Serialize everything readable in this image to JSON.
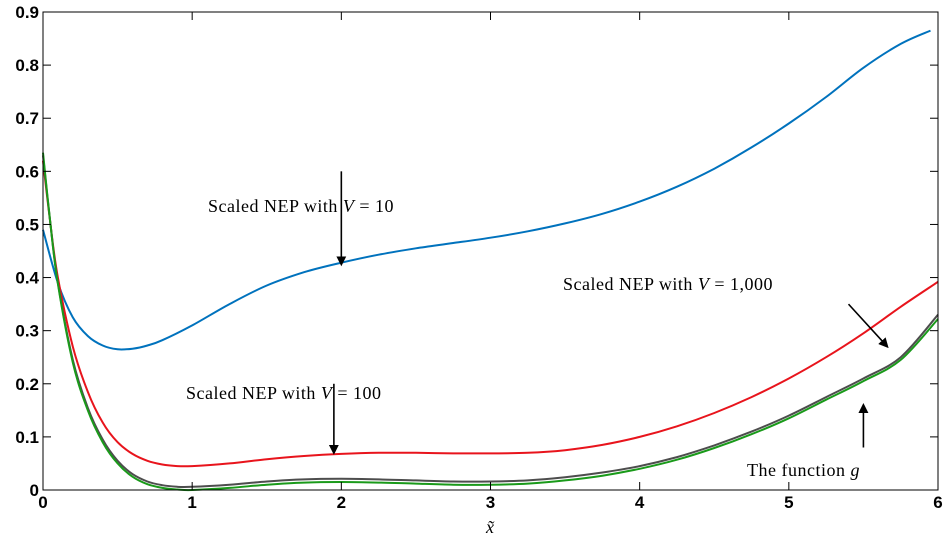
{
  "chart_data": {
    "type": "line",
    "xlabel": "x̃",
    "ylabel": "",
    "xlim": [
      0,
      6
    ],
    "ylim": [
      0,
      0.9
    ],
    "grid": false,
    "x_ticks": [
      "0",
      "1",
      "2",
      "3",
      "4",
      "5",
      "6"
    ],
    "y_ticks": [
      "0",
      "0.1",
      "0.2",
      "0.3",
      "0.4",
      "0.5",
      "0.6",
      "0.7",
      "0.8",
      "0.9"
    ],
    "series": [
      {
        "name": "Scaled NEP with V = 10",
        "color": "#0072BD",
        "points": [
          [
            0,
            0.49
          ],
          [
            0.1,
            0.39
          ],
          [
            0.2,
            0.325
          ],
          [
            0.3,
            0.29
          ],
          [
            0.4,
            0.272
          ],
          [
            0.5,
            0.265
          ],
          [
            0.6,
            0.266
          ],
          [
            0.7,
            0.272
          ],
          [
            0.8,
            0.282
          ],
          [
            1.0,
            0.31
          ],
          [
            1.25,
            0.35
          ],
          [
            1.5,
            0.385
          ],
          [
            1.75,
            0.41
          ],
          [
            2.0,
            0.428
          ],
          [
            2.25,
            0.443
          ],
          [
            2.5,
            0.455
          ],
          [
            2.75,
            0.465
          ],
          [
            3.0,
            0.475
          ],
          [
            3.25,
            0.487
          ],
          [
            3.5,
            0.502
          ],
          [
            3.75,
            0.52
          ],
          [
            4.0,
            0.543
          ],
          [
            4.25,
            0.571
          ],
          [
            4.5,
            0.605
          ],
          [
            4.75,
            0.645
          ],
          [
            5.0,
            0.69
          ],
          [
            5.25,
            0.74
          ],
          [
            5.5,
            0.795
          ],
          [
            5.75,
            0.84
          ],
          [
            5.95,
            0.865
          ]
        ]
      },
      {
        "name": "Scaled NEP with V = 100",
        "color": "#E8141C",
        "points": [
          [
            0,
            0.62
          ],
          [
            0.05,
            0.5
          ],
          [
            0.1,
            0.4
          ],
          [
            0.2,
            0.27
          ],
          [
            0.3,
            0.185
          ],
          [
            0.4,
            0.127
          ],
          [
            0.5,
            0.09
          ],
          [
            0.6,
            0.068
          ],
          [
            0.7,
            0.055
          ],
          [
            0.8,
            0.048
          ],
          [
            0.9,
            0.045
          ],
          [
            1.0,
            0.045
          ],
          [
            1.25,
            0.05
          ],
          [
            1.5,
            0.058
          ],
          [
            1.75,
            0.064
          ],
          [
            2.0,
            0.068
          ],
          [
            2.25,
            0.07
          ],
          [
            2.5,
            0.07
          ],
          [
            2.75,
            0.069
          ],
          [
            3.0,
            0.069
          ],
          [
            3.25,
            0.07
          ],
          [
            3.5,
            0.075
          ],
          [
            3.75,
            0.085
          ],
          [
            4.0,
            0.1
          ],
          [
            4.25,
            0.12
          ],
          [
            4.5,
            0.145
          ],
          [
            4.75,
            0.175
          ],
          [
            5.0,
            0.21
          ],
          [
            5.25,
            0.25
          ],
          [
            5.5,
            0.295
          ],
          [
            5.75,
            0.345
          ],
          [
            6.0,
            0.392
          ]
        ]
      },
      {
        "name": "Scaled NEP with V = 1,000",
        "color": "#4D4D4D",
        "points": [
          [
            0,
            0.63
          ],
          [
            0.05,
            0.5
          ],
          [
            0.1,
            0.39
          ],
          [
            0.2,
            0.245
          ],
          [
            0.3,
            0.155
          ],
          [
            0.4,
            0.095
          ],
          [
            0.5,
            0.055
          ],
          [
            0.6,
            0.03
          ],
          [
            0.7,
            0.016
          ],
          [
            0.8,
            0.009
          ],
          [
            0.9,
            0.006
          ],
          [
            1.0,
            0.006
          ],
          [
            1.25,
            0.01
          ],
          [
            1.5,
            0.016
          ],
          [
            1.75,
            0.02
          ],
          [
            2.0,
            0.021
          ],
          [
            2.25,
            0.02
          ],
          [
            2.5,
            0.018
          ],
          [
            2.75,
            0.016
          ],
          [
            3.0,
            0.016
          ],
          [
            3.25,
            0.018
          ],
          [
            3.5,
            0.024
          ],
          [
            3.75,
            0.033
          ],
          [
            4.0,
            0.045
          ],
          [
            4.25,
            0.062
          ],
          [
            4.5,
            0.084
          ],
          [
            4.75,
            0.11
          ],
          [
            5.0,
            0.14
          ],
          [
            5.25,
            0.175
          ],
          [
            5.5,
            0.21
          ],
          [
            5.75,
            0.25
          ],
          [
            6.0,
            0.33
          ]
        ]
      },
      {
        "name": "The function g",
        "color": "#1A9A1A",
        "points": [
          [
            0,
            0.635
          ],
          [
            0.05,
            0.5
          ],
          [
            0.1,
            0.388
          ],
          [
            0.2,
            0.24
          ],
          [
            0.3,
            0.15
          ],
          [
            0.4,
            0.09
          ],
          [
            0.5,
            0.05
          ],
          [
            0.6,
            0.025
          ],
          [
            0.7,
            0.011
          ],
          [
            0.8,
            0.004
          ],
          [
            0.9,
            0.001
          ],
          [
            1.0,
            0.0
          ],
          [
            1.25,
            0.004
          ],
          [
            1.5,
            0.01
          ],
          [
            1.75,
            0.014
          ],
          [
            2.0,
            0.015
          ],
          [
            2.25,
            0.014
          ],
          [
            2.5,
            0.012
          ],
          [
            2.75,
            0.01
          ],
          [
            3.0,
            0.01
          ],
          [
            3.25,
            0.012
          ],
          [
            3.5,
            0.018
          ],
          [
            3.75,
            0.027
          ],
          [
            4.0,
            0.04
          ],
          [
            4.25,
            0.057
          ],
          [
            4.5,
            0.079
          ],
          [
            4.75,
            0.105
          ],
          [
            5.0,
            0.135
          ],
          [
            5.25,
            0.17
          ],
          [
            5.5,
            0.205
          ],
          [
            5.75,
            0.245
          ],
          [
            6.0,
            0.322
          ]
        ]
      }
    ],
    "annotations": [
      {
        "text": "Scaled NEP with",
        "var": "V",
        "value": "= 10",
        "arrow_from": [
          2.0,
          0.6
        ],
        "arrow_to": [
          2.0,
          0.425
        ]
      },
      {
        "text": "Scaled NEP with",
        "var": "V",
        "value": "= 100",
        "arrow_from": [
          1.95,
          0.2
        ],
        "arrow_to": [
          1.95,
          0.07
        ]
      },
      {
        "text": "Scaled NEP with",
        "var": "V",
        "value": "= 1,000",
        "arrow_from": [
          5.4,
          0.35
        ],
        "arrow_to": [
          5.66,
          0.27
        ]
      },
      {
        "text": "The function",
        "var": "g",
        "value": "",
        "arrow_from": [
          5.5,
          0.08
        ],
        "arrow_to": [
          5.5,
          0.16
        ]
      }
    ]
  }
}
